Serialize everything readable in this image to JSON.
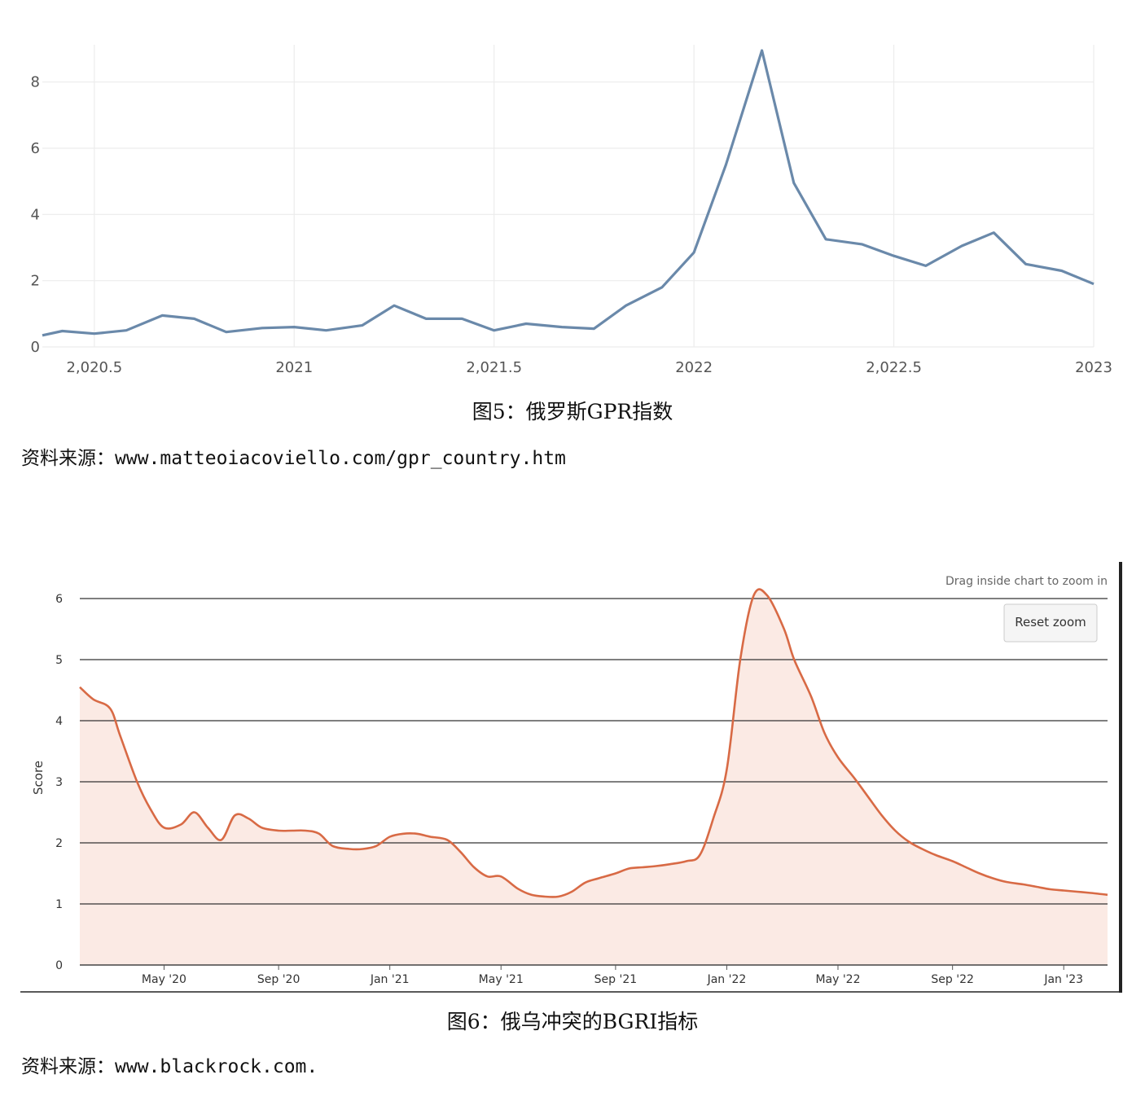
{
  "figure5": {
    "caption": "图5：俄罗斯GPR指数",
    "source_label": "资料来源：",
    "source_url": "www.matteoiacoviello.com/gpr_country.htm"
  },
  "figure6": {
    "caption": "图6：俄乌冲突的BGRI指标",
    "source_label": "资料来源：",
    "source_url": "www.blackrock.com.",
    "zoom_hint": "Drag inside chart to zoom in",
    "reset_zoom_label": "Reset zoom"
  },
  "chart_data": [
    {
      "type": "line",
      "xlim": [
        2020.37,
        2023.0
      ],
      "ylim": [
        0,
        9
      ],
      "xticks": [
        2020.5,
        2021,
        2021.5,
        2022,
        2022.5,
        2023
      ],
      "xtick_labels": [
        "2,020.5",
        "2021",
        "2,021.5",
        "2022",
        "2,022.5",
        "2023"
      ],
      "yticks": [
        0,
        2,
        4,
        6,
        8
      ],
      "grid": true,
      "color": "#6a89aa",
      "series": [
        {
          "x": [
            2020.37,
            2020.42,
            2020.5,
            2020.58,
            2020.67,
            2020.75,
            2020.83,
            2020.92,
            2021.0,
            2021.08,
            2021.17,
            2021.25,
            2021.33,
            2021.42,
            2021.5,
            2021.58,
            2021.67,
            2021.75,
            2021.83,
            2021.92,
            2022.0,
            2022.08,
            2022.17,
            2022.25,
            2022.33,
            2022.42,
            2022.5,
            2022.58,
            2022.67,
            2022.75,
            2022.83,
            2022.92,
            2023.0
          ],
          "y": [
            0.35,
            0.48,
            0.4,
            0.5,
            0.95,
            0.85,
            0.45,
            0.57,
            0.6,
            0.5,
            0.65,
            1.25,
            0.85,
            0.85,
            0.5,
            0.7,
            0.6,
            0.55,
            1.25,
            1.8,
            2.85,
            5.5,
            8.95,
            4.95,
            3.25,
            3.1,
            2.75,
            2.45,
            3.05,
            3.45,
            2.5,
            2.3,
            1.9
          ]
        }
      ]
    },
    {
      "type": "area",
      "ylabel": "Score",
      "xlim": [
        2020.08,
        2023.13
      ],
      "ylim": [
        0,
        6
      ],
      "yticks": [
        0,
        1,
        2,
        3,
        4,
        5,
        6
      ],
      "xticks": [
        2020.33,
        2020.67,
        2021.0,
        2021.33,
        2021.67,
        2022.0,
        2022.33,
        2022.67,
        2023.0
      ],
      "xtick_labels": [
        "May '20",
        "Sep '20",
        "Jan '21",
        "May '21",
        "Sep '21",
        "Jan '22",
        "May '22",
        "Sep '22",
        "Jan '23"
      ],
      "grid": true,
      "color": "#d86a45",
      "fill": "#fbeae4",
      "series": [
        {
          "x": [
            2020.08,
            2020.12,
            2020.17,
            2020.2,
            2020.25,
            2020.29,
            2020.33,
            2020.38,
            2020.42,
            2020.46,
            2020.5,
            2020.54,
            2020.58,
            2020.62,
            2020.67,
            2020.71,
            2020.75,
            2020.79,
            2020.83,
            2020.88,
            2020.92,
            2020.96,
            2021.0,
            2021.04,
            2021.08,
            2021.12,
            2021.17,
            2021.21,
            2021.25,
            2021.29,
            2021.33,
            2021.38,
            2021.42,
            2021.46,
            2021.5,
            2021.54,
            2021.58,
            2021.62,
            2021.67,
            2021.71,
            2021.75,
            2021.79,
            2021.83,
            2021.88,
            2021.92,
            2021.96,
            2022.0,
            2022.04,
            2022.08,
            2022.12,
            2022.17,
            2022.2,
            2022.25,
            2022.29,
            2022.33,
            2022.38,
            2022.42,
            2022.46,
            2022.5,
            2022.54,
            2022.58,
            2022.62,
            2022.67,
            2022.71,
            2022.75,
            2022.79,
            2022.83,
            2022.88,
            2022.92,
            2022.96,
            2023.0,
            2023.04,
            2023.08,
            2023.13
          ],
          "y": [
            4.55,
            4.35,
            4.2,
            3.75,
            3.0,
            2.55,
            2.25,
            2.3,
            2.5,
            2.25,
            2.05,
            2.45,
            2.4,
            2.25,
            2.2,
            2.2,
            2.2,
            2.15,
            1.95,
            1.9,
            1.9,
            1.95,
            2.1,
            2.15,
            2.15,
            2.1,
            2.05,
            1.85,
            1.6,
            1.45,
            1.45,
            1.25,
            1.15,
            1.12,
            1.12,
            1.2,
            1.35,
            1.42,
            1.5,
            1.58,
            1.6,
            1.62,
            1.65,
            1.7,
            1.8,
            2.4,
            3.2,
            5.0,
            6.05,
            6.05,
            5.5,
            5.0,
            4.4,
            3.8,
            3.4,
            3.05,
            2.75,
            2.45,
            2.2,
            2.02,
            1.9,
            1.8,
            1.7,
            1.6,
            1.5,
            1.42,
            1.36,
            1.32,
            1.28,
            1.24,
            1.22,
            1.2,
            1.18,
            1.15
          ]
        }
      ]
    }
  ]
}
